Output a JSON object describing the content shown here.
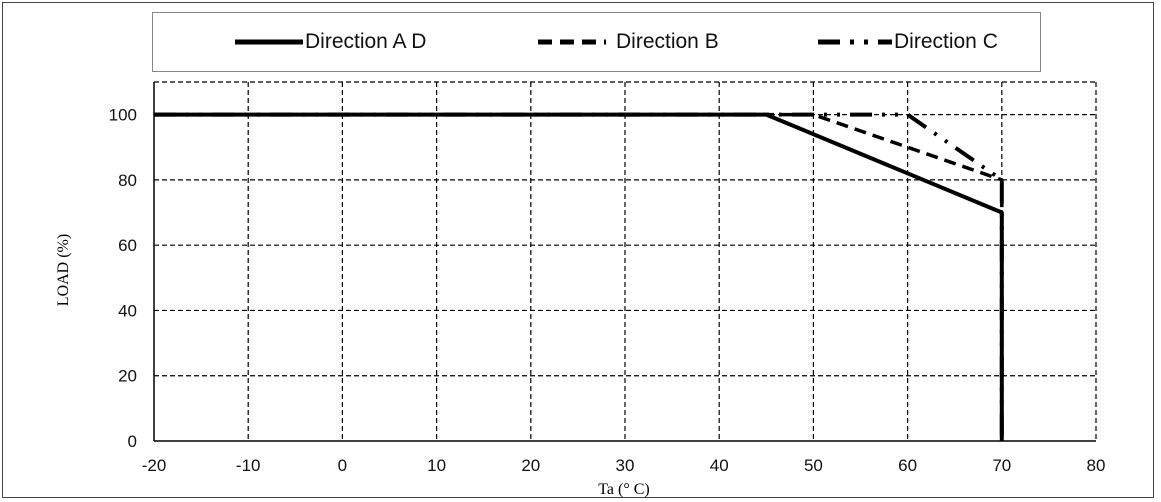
{
  "chart_data": {
    "type": "line",
    "xlabel": "Ta (° C)",
    "ylabel": "LOAD (%)",
    "xlim": [
      -20,
      80
    ],
    "ylim": [
      0,
      110
    ],
    "xticks": [
      -20,
      -10,
      0,
      10,
      20,
      30,
      40,
      50,
      60,
      70,
      80
    ],
    "yticks": [
      0,
      20,
      40,
      60,
      80,
      100
    ],
    "grid": true,
    "legend_position": "top",
    "series": [
      {
        "name": "Direction A D",
        "style": "solid",
        "x": [
          -20,
          45,
          70,
          70
        ],
        "y": [
          100,
          100,
          70,
          0
        ]
      },
      {
        "name": "Direction B",
        "style": "dashed",
        "x": [
          -20,
          50,
          70,
          70
        ],
        "y": [
          100,
          100,
          80,
          0
        ]
      },
      {
        "name": "Direction C",
        "style": "dash-dot",
        "x": [
          -20,
          60,
          70,
          70
        ],
        "y": [
          100,
          100,
          80,
          0
        ]
      }
    ]
  },
  "colors": {
    "line": "#000000",
    "grid": "#000000",
    "axis": "#000000"
  }
}
